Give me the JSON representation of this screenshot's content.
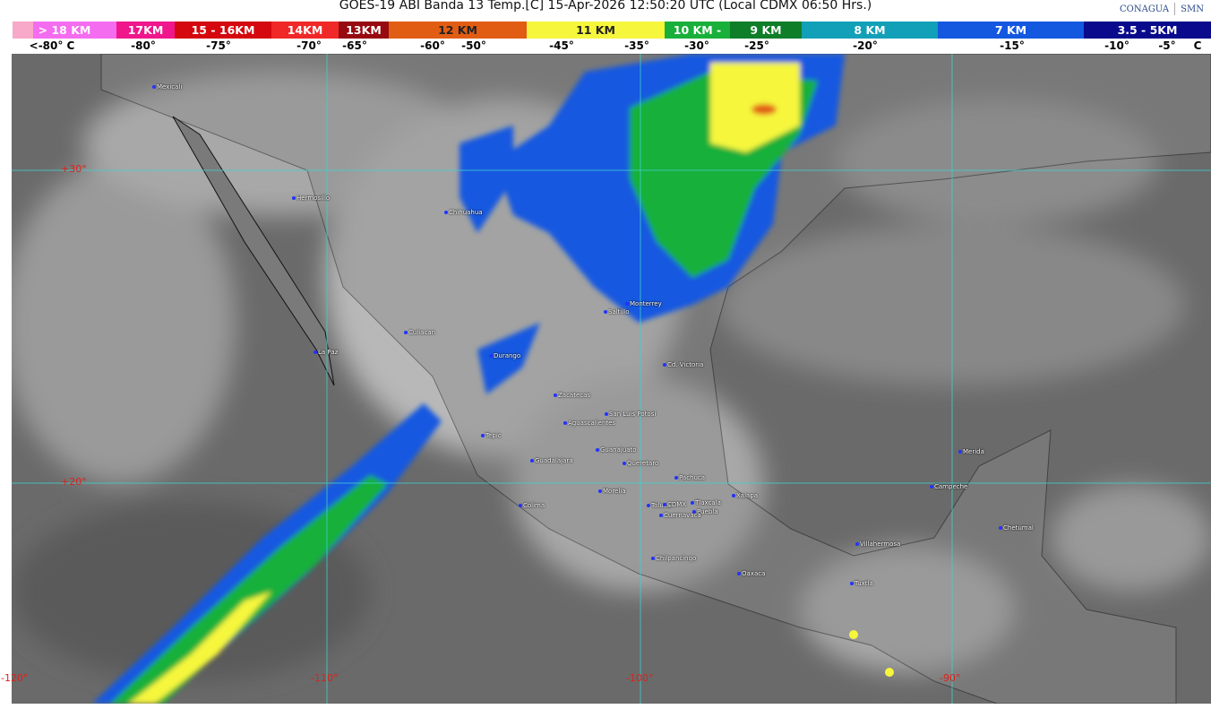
{
  "header": {
    "title": "GOES-19 ABI Banda 13 Temp.[C] 15-Apr-2026 12:50:20 UTC (Local CDMX  06:50 Hrs.)",
    "logos": [
      "CONAGUA",
      "SMN"
    ]
  },
  "scale": {
    "segments": [
      {
        "label": "> 18 KM",
        "color": "#f46cf0"
      },
      {
        "label": "17KM",
        "color": "#f0168c"
      },
      {
        "label": "15 - 16KM",
        "color": "#d4080e"
      },
      {
        "label": "14KM",
        "color": "#f02828"
      },
      {
        "label": "13KM",
        "color": "#960a10"
      },
      {
        "label": "12 KM",
        "color": "#e25d14"
      },
      {
        "label": "11 KM",
        "color": "#f6f63c"
      },
      {
        "label": "10 KM -",
        "color": "#18b03a"
      },
      {
        "label": "9 KM",
        "color": "#0e7e28"
      },
      {
        "label": "8 KM",
        "color": "#12a0b8"
      },
      {
        "label": "7 KM",
        "color": "#1458e0"
      },
      {
        "label": "3.5 - 5KM",
        "color": "#0a0a8c"
      }
    ],
    "temps": [
      "<-80° C",
      "-80°",
      "-75°",
      "-70°",
      "-65°",
      "-60°",
      "-50°",
      "-45°",
      "-35°",
      "-30°",
      "-25°",
      "-20°",
      "-15°",
      "-10°",
      "-5°",
      "C"
    ]
  },
  "map": {
    "latitudes": [
      "+30°",
      "+20°"
    ],
    "longitudes": [
      "-120°",
      "-110°",
      "-100°",
      "-90°"
    ],
    "grid_color": "#40d0d0",
    "cities": [
      "Mexicali",
      "Hermosillo",
      "Chihuahua",
      "La Paz",
      "Culiacan",
      "Durango",
      "Saltillo",
      "Monterrey",
      "Cd. Victoria",
      "Zacatecas",
      "San Luis Potosi",
      "Aguascalientes",
      "Tepic",
      "Guanajuato",
      "Guadalajara",
      "Queretaro",
      "Pachuca",
      "Morelia",
      "Xalapa",
      "Colima",
      "Toluca",
      "CDMX",
      "Tlaxcala",
      "Puebla",
      "Cuernavaca",
      "Chilpancingo",
      "Oaxaca",
      "Villahermosa",
      "Tuxtla",
      "Merida",
      "Campeche",
      "Chetumal"
    ]
  }
}
